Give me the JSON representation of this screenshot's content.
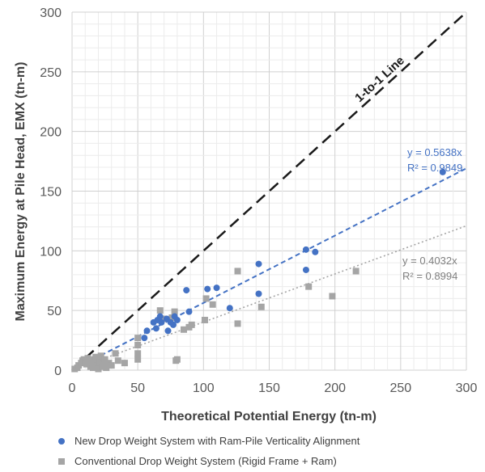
{
  "chart_data": {
    "type": "scatter",
    "xlabel": "Theoretical Potential Energy (tn-m)",
    "ylabel": "Maximum Energy at Pile Head, EMX (tn-m)",
    "xlim": [
      0,
      300
    ],
    "ylim": [
      0,
      300
    ],
    "xticks": [
      "0",
      "50",
      "100",
      "150",
      "200",
      "250",
      "300"
    ],
    "yticks": [
      "0",
      "50",
      "100",
      "150",
      "200",
      "250",
      "300"
    ],
    "grid": true,
    "legend_position": "bottom",
    "reference_line": {
      "label": "1-to-1 Line",
      "slope": 1,
      "color": "#1a1a1a"
    },
    "series": [
      {
        "name": "New Drop Weight System with Ram-Pile Verticality Alignment",
        "marker": "circle",
        "color": "#4472C4",
        "trendline": {
          "slope": 0.5638,
          "equation": "y = 0.5638x",
          "r2": "R² = 0.9849",
          "color": "#4472C4"
        },
        "points": [
          [
            55,
            27
          ],
          [
            57,
            33
          ],
          [
            62,
            40
          ],
          [
            64,
            35
          ],
          [
            65,
            42
          ],
          [
            67,
            45
          ],
          [
            68,
            40
          ],
          [
            72,
            43
          ],
          [
            73,
            33
          ],
          [
            75,
            40
          ],
          [
            77,
            38
          ],
          [
            78,
            45
          ],
          [
            80,
            42
          ],
          [
            87,
            67
          ],
          [
            89,
            49
          ],
          [
            103,
            68
          ],
          [
            110,
            69
          ],
          [
            120,
            52
          ],
          [
            142,
            89
          ],
          [
            142,
            64
          ],
          [
            178,
            101
          ],
          [
            178,
            84
          ],
          [
            185,
            99
          ],
          [
            282,
            166
          ]
        ]
      },
      {
        "name": "Conventional Drop Weight System (Rigid Frame + Ram)",
        "marker": "square",
        "color": "#A5A5A5",
        "trendline": {
          "slope": 0.4032,
          "equation": "y = 0.4032x",
          "r2": "R² = 0.8994",
          "color": "#A5A5A5"
        },
        "points": [
          [
            2,
            1
          ],
          [
            4,
            2
          ],
          [
            5,
            4
          ],
          [
            7,
            6
          ],
          [
            8,
            8
          ],
          [
            9,
            9
          ],
          [
            10,
            7
          ],
          [
            11,
            5
          ],
          [
            12,
            10
          ],
          [
            13,
            8
          ],
          [
            14,
            3
          ],
          [
            15,
            6
          ],
          [
            16,
            2
          ],
          [
            17,
            9
          ],
          [
            18,
            11
          ],
          [
            19,
            4
          ],
          [
            20,
            1
          ],
          [
            21,
            7
          ],
          [
            22,
            12
          ],
          [
            23,
            3
          ],
          [
            24,
            5
          ],
          [
            25,
            9
          ],
          [
            26,
            2
          ],
          [
            28,
            6
          ],
          [
            30,
            4
          ],
          [
            33,
            14
          ],
          [
            35,
            8
          ],
          [
            40,
            6
          ],
          [
            50,
            27
          ],
          [
            50,
            21
          ],
          [
            50,
            14
          ],
          [
            50,
            9
          ],
          [
            67,
            50
          ],
          [
            70,
            43
          ],
          [
            76,
            44
          ],
          [
            78,
            49
          ],
          [
            79,
            8
          ],
          [
            80,
            9
          ],
          [
            85,
            34
          ],
          [
            89,
            36
          ],
          [
            91,
            38
          ],
          [
            101,
            42
          ],
          [
            102,
            60
          ],
          [
            107,
            55
          ],
          [
            126,
            83
          ],
          [
            126,
            39
          ],
          [
            144,
            53
          ],
          [
            180,
            70
          ],
          [
            198,
            62
          ],
          [
            216,
            83
          ]
        ]
      }
    ]
  }
}
